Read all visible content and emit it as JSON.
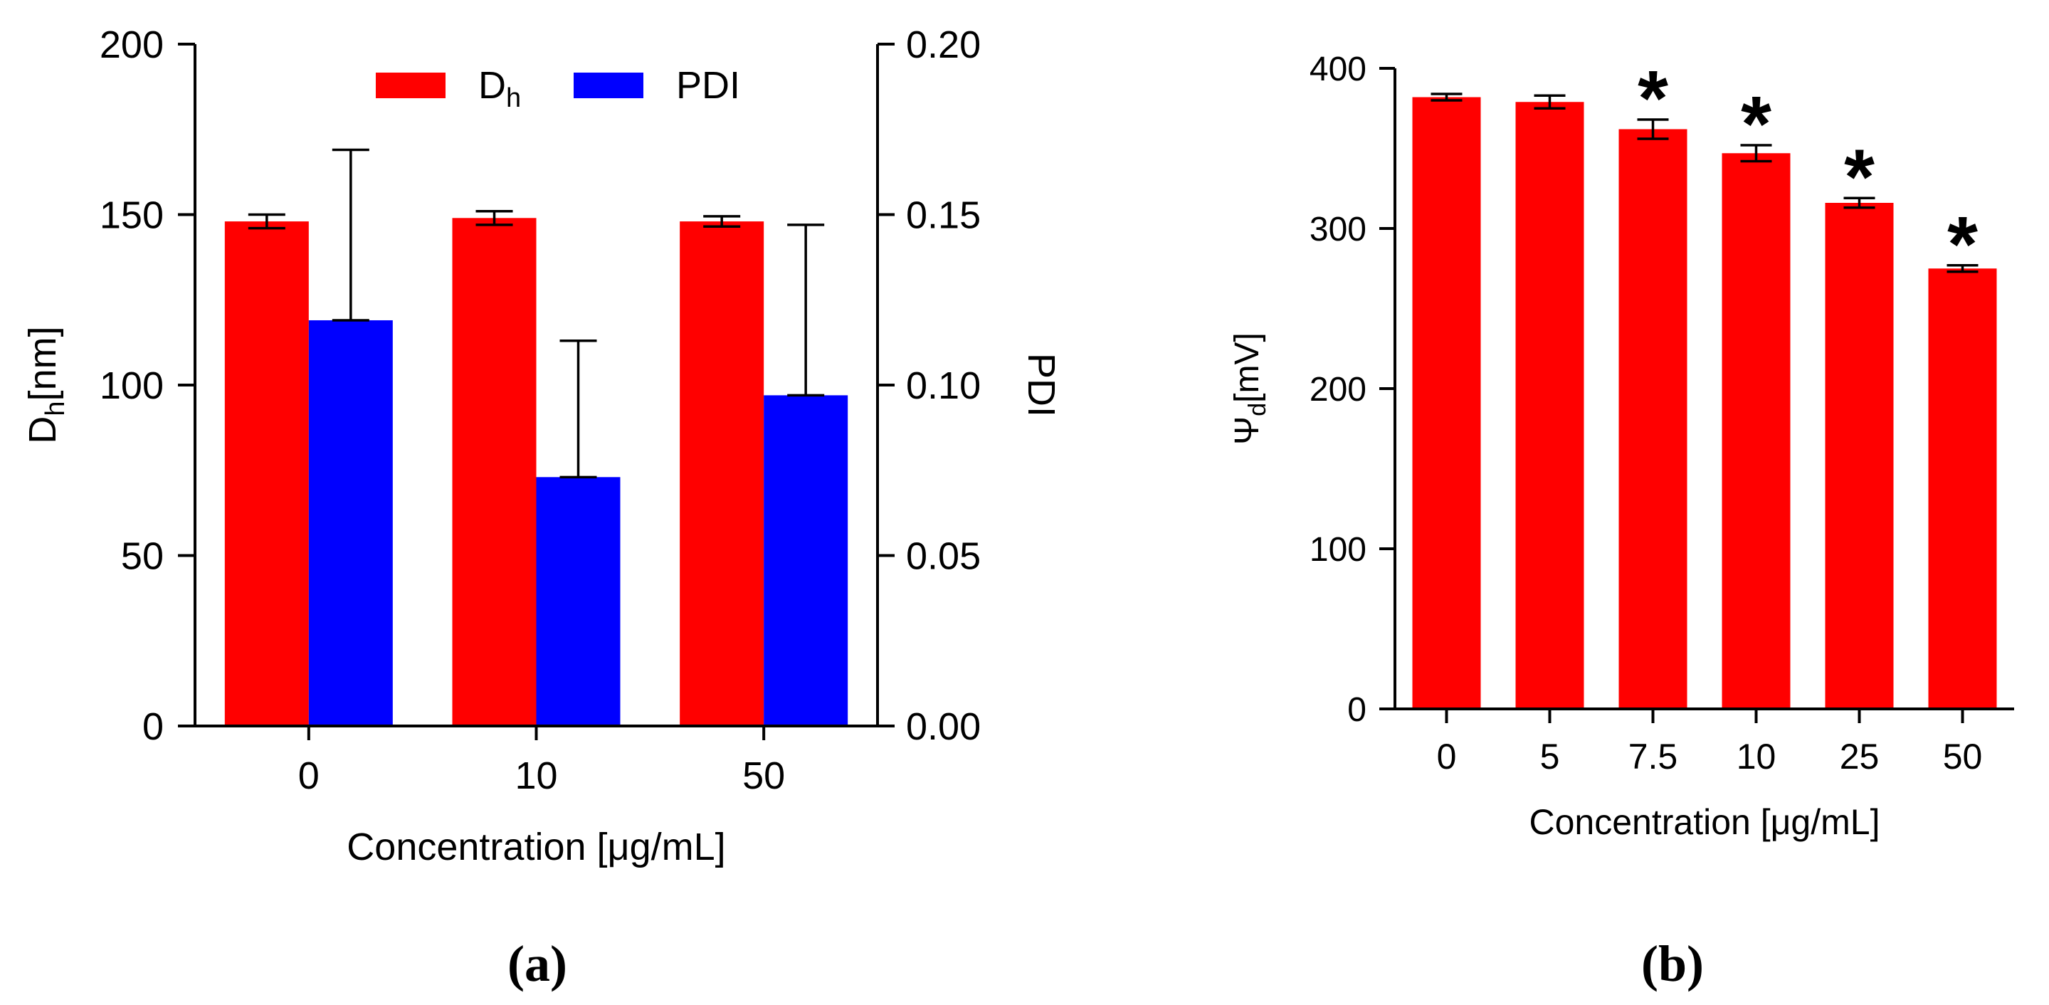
{
  "colors": {
    "red": "#ff0000",
    "blue": "#0000ff",
    "ink": "#000000"
  },
  "chart_data": [
    {
      "panel": "(a)",
      "type": "bar",
      "categories": [
        "0",
        "10",
        "50"
      ],
      "xlabel": "Concentration [μg/mL]",
      "ylabel_main": "D",
      "ylabel_sub": "h",
      "ylabel_tail": "[nm]",
      "y2label": "PDI",
      "ylim": [
        0,
        200
      ],
      "y2lim": [
        0,
        0.2
      ],
      "yticks": [
        "0",
        "50",
        "100",
        "150",
        "200"
      ],
      "y2ticks": [
        "0.00",
        "0.05",
        "0.10",
        "0.15",
        "0.20"
      ],
      "legend": {
        "position": "top-center",
        "entries": [
          {
            "main": "D",
            "sub": "h"
          },
          {
            "main": "PDI",
            "sub": ""
          }
        ]
      },
      "series": [
        {
          "name": "Dh",
          "axis": "left",
          "color": "#ff0000",
          "values": [
            148,
            149,
            148
          ],
          "errors": [
            2,
            2,
            1.5
          ]
        },
        {
          "name": "PDI",
          "axis": "right",
          "color": "#0000ff",
          "values": [
            0.119,
            0.073,
            0.097
          ],
          "errors": [
            0.05,
            0.04,
            0.05
          ]
        }
      ]
    },
    {
      "panel": "(b)",
      "type": "bar",
      "categories": [
        "0",
        "5",
        "7.5",
        "10",
        "25",
        "50"
      ],
      "xlabel": "Concentration [μg/mL]",
      "ylabel_main": "Ψ",
      "ylabel_sub": "d",
      "ylabel_tail": "[mV]",
      "ylim": [
        0,
        400
      ],
      "yticks": [
        "0",
        "100",
        "200",
        "300",
        "400"
      ],
      "series": [
        {
          "name": "Ψd",
          "color": "#ff0000",
          "values": [
            382,
            379,
            362,
            347,
            316,
            275
          ],
          "errors": [
            2,
            4,
            6,
            5,
            3,
            2
          ]
        }
      ],
      "annotations": [
        "",
        "",
        "*",
        "*",
        "*",
        "*"
      ]
    }
  ]
}
